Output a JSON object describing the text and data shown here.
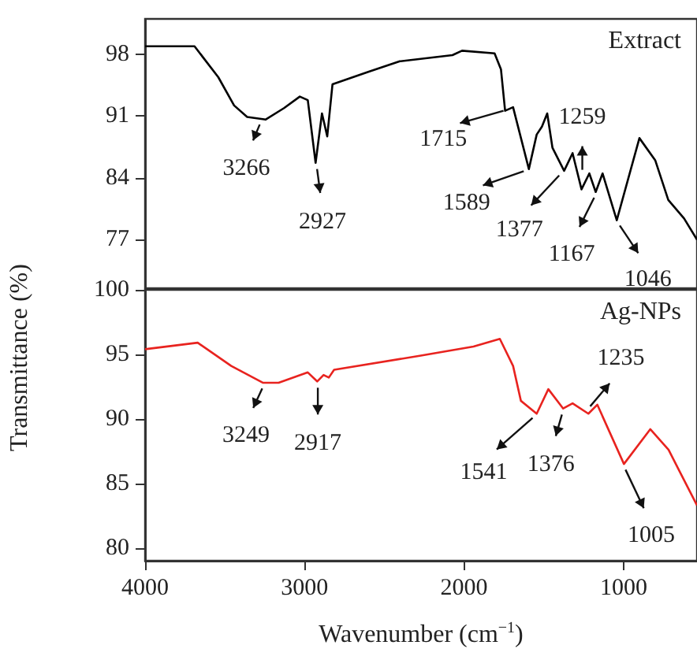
{
  "chart_data": [
    {
      "type": "line",
      "tick_labels": "y",
      "xlim": [
        4000,
        540
      ],
      "ylim": [
        71.5,
        102
      ],
      "yticks": [
        77,
        84,
        91,
        98
      ],
      "grid": false,
      "legend": false,
      "marker": "none",
      "line_style": "solid",
      "series": [
        {
          "name": "Extract",
          "color": "#000000",
          "x": [
            4000,
            3690,
            3541,
            3442,
            3360,
            3245,
            3129,
            3030,
            2980,
            2931,
            2891,
            2858,
            2825,
            2601,
            2403,
            2073,
            2013,
            1809,
            1769,
            1743,
            1693,
            1594,
            1545,
            1512,
            1479,
            1446,
            1373,
            1320,
            1264,
            1215,
            1175,
            1132,
            1043,
            901,
            802,
            720,
            621,
            540
          ],
          "values": [
            98.9,
            98.9,
            95.4,
            92.2,
            90.9,
            90.6,
            91.9,
            93.2,
            92.8,
            85.7,
            91.3,
            88.7,
            94.6,
            96.0,
            97.2,
            97.9,
            98.4,
            98.1,
            96.3,
            91.6,
            92.0,
            85.0,
            88.9,
            89.8,
            91.3,
            87.4,
            84.8,
            86.8,
            82.7,
            84.5,
            82.4,
            84.5,
            79.2,
            88.5,
            86.0,
            81.5,
            79.4,
            77.0
          ]
        }
      ],
      "annotations": [
        {
          "text": "3266",
          "x": 3266,
          "y": 90.7
        },
        {
          "text": "2927",
          "x": 2927,
          "y": 85.7
        },
        {
          "text": "1715",
          "x": 1715,
          "y": 91.8
        },
        {
          "text": "1589",
          "x": 1589,
          "y": 85.0
        },
        {
          "text": "1377",
          "x": 1377,
          "y": 84.8
        },
        {
          "text": "1259",
          "x": 1259,
          "y": 84.2
        },
        {
          "text": "1167",
          "x": 1167,
          "y": 82.4
        },
        {
          "text": "1046",
          "x": 1046,
          "y": 79.2
        }
      ]
    },
    {
      "type": "line",
      "xlabel": "Wavenumber (cm$^{−1}$)",
      "ylabel": "Transmittance (%)",
      "xlim": [
        4000,
        540
      ],
      "xticks": [
        4000,
        3000,
        2000,
        1000
      ],
      "ylim": [
        79,
        100
      ],
      "yticks": [
        80,
        85,
        90,
        95,
        100
      ],
      "grid": false,
      "legend": false,
      "marker": "none",
      "line_style": "solid",
      "series": [
        {
          "name": "Ag-NPs",
          "color": "#e8231f",
          "x": [
            4000,
            3670,
            3460,
            3262,
            3163,
            2980,
            2921,
            2881,
            2848,
            2815,
            2271,
            1941,
            1776,
            1693,
            1644,
            1545,
            1472,
            1379,
            1320,
            1221,
            1165,
            998,
            833,
            718,
            652,
            540
          ],
          "values": [
            95.4,
            95.9,
            94.1,
            92.8,
            92.8,
            93.6,
            92.9,
            93.4,
            93.2,
            93.8,
            94.9,
            95.6,
            96.2,
            94.1,
            91.4,
            90.4,
            92.3,
            90.8,
            91.2,
            90.4,
            91.1,
            86.5,
            89.2,
            87.6,
            86.0,
            83.3
          ]
        }
      ],
      "annotations": [
        {
          "text": "3249",
          "x": 3249,
          "y": 92.8
        },
        {
          "text": "2917",
          "x": 2917,
          "y": 92.9
        },
        {
          "text": "1541",
          "x": 1541,
          "y": 90.4
        },
        {
          "text": "1376",
          "x": 1376,
          "y": 90.8
        },
        {
          "text": "1235",
          "x": 1235,
          "y": 90.6
        },
        {
          "text": "1005",
          "x": 1005,
          "y": 86.5
        }
      ]
    }
  ]
}
